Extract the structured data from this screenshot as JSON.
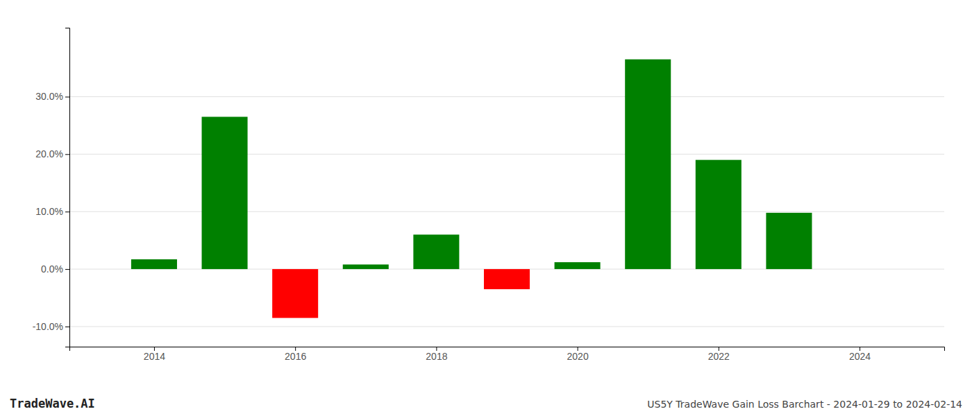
{
  "chart_data": {
    "type": "bar",
    "title": "US5Y TradeWave Gain Loss Barchart - 2024-01-29 to 2024-02-14",
    "annotations": [
      "TradeWave.AI"
    ],
    "x": [
      2014,
      2015,
      2016,
      2017,
      2018,
      2019,
      2020,
      2021,
      2022,
      2023
    ],
    "values": [
      1.7,
      26.5,
      -8.5,
      0.8,
      6.0,
      -3.5,
      1.2,
      36.5,
      19.0,
      9.8
    ],
    "colors": [
      "#008000",
      "#008000",
      "#ff0000",
      "#008000",
      "#008000",
      "#ff0000",
      "#008000",
      "#008000",
      "#008000",
      "#008000"
    ],
    "xlim": [
      2012.8,
      2025.2
    ],
    "xticks": [
      2014,
      2016,
      2018,
      2020,
      2022,
      2024
    ],
    "ylim": [
      -13.5,
      42
    ],
    "yticks": [
      {
        "value": -10.0,
        "label": "-10.0%"
      },
      {
        "value": 0.0,
        "label": "0.0%"
      },
      {
        "value": 10.0,
        "label": "10.0%"
      },
      {
        "value": 20.0,
        "label": "20.0%"
      },
      {
        "value": 30.0,
        "label": "30.0%"
      }
    ],
    "grid": true
  }
}
